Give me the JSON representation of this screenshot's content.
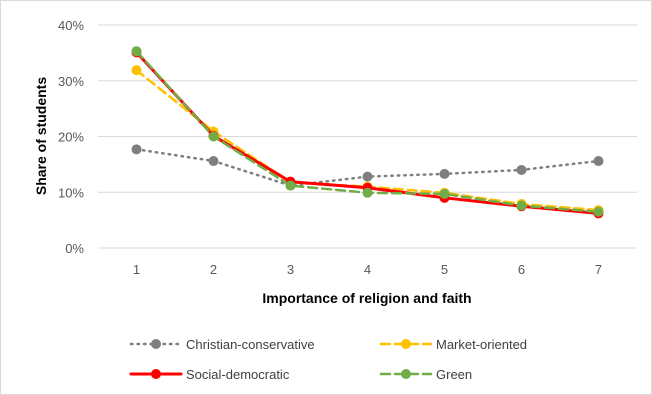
{
  "chart_data": {
    "type": "line",
    "title": "",
    "xlabel": "Importance of religion and faith",
    "ylabel": "Share of students",
    "x": [
      "1",
      "2",
      "3",
      "4",
      "5",
      "6",
      "7"
    ],
    "y_ticks": [
      "0%",
      "10%",
      "20%",
      "30%",
      "40%"
    ],
    "ylim": [
      0,
      40
    ],
    "grid": true,
    "legend_position": "bottom",
    "series": [
      {
        "name": "Christian-conservative",
        "color": "#7f7f7f",
        "dash": "dotted",
        "values": [
          17.7,
          15.6,
          11.2,
          12.8,
          13.3,
          14.0,
          15.6
        ]
      },
      {
        "name": "Market-oriented",
        "color": "#ffc000",
        "dash": "dashed",
        "values": [
          31.9,
          20.9,
          11.8,
          11.0,
          9.9,
          7.9,
          6.8
        ]
      },
      {
        "name": "Social-democratic",
        "color": "#ff0000",
        "dash": "solid",
        "values": [
          35.1,
          20.1,
          11.9,
          10.8,
          9.0,
          7.5,
          6.2
        ]
      },
      {
        "name": "Green",
        "color": "#70ad47",
        "dash": "dashed",
        "values": [
          35.3,
          20.0,
          11.2,
          9.9,
          9.7,
          7.6,
          6.5
        ]
      }
    ]
  }
}
